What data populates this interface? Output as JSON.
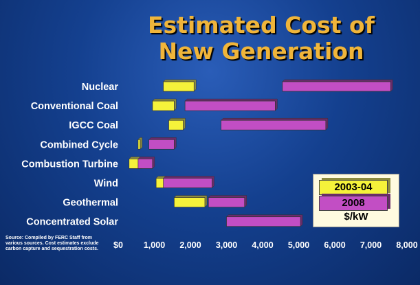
{
  "title": {
    "line1": "Estimated Cost of",
    "line2": "New Generation"
  },
  "source_note": "Source: Compiled by FERC Staff from various sources. Cost estimates exclude carbon capture and sequestration costs.",
  "legend": {
    "series1": "2003-04",
    "series2": "2008",
    "unit": "$/kW"
  },
  "colors": {
    "series1": "#f5f23a",
    "series2": "#c24ec4",
    "title": "#f0b53a"
  },
  "chart_data": {
    "type": "bar",
    "orientation": "horizontal-range",
    "title": "Estimated Cost of New Generation",
    "xlabel": "",
    "ylabel": "",
    "xlim": [
      0,
      8000
    ],
    "x_ticks": [
      "$0",
      "1,000",
      "2,000",
      "3,000",
      "4,000",
      "5,000",
      "6,000",
      "7,000",
      "8,000"
    ],
    "categories": [
      "Nuclear",
      "Conventional Coal",
      "IGCC Coal",
      "Combined Cycle",
      "Combustion Turbine",
      "Wind",
      "Geothermal",
      "Concentrated Solar"
    ],
    "series": [
      {
        "name": "2003-04",
        "ranges": [
          [
            1250,
            2100
          ],
          [
            950,
            1550
          ],
          [
            1400,
            1800
          ],
          [
            550,
            600
          ],
          [
            300,
            650
          ],
          [
            1050,
            1300
          ],
          [
            1550,
            2400
          ],
          null
        ]
      },
      {
        "name": "2008",
        "ranges": [
          [
            4550,
            7550
          ],
          [
            1850,
            4350
          ],
          [
            2850,
            5750
          ],
          [
            850,
            1550
          ],
          [
            550,
            950
          ],
          [
            1250,
            2600
          ],
          [
            2500,
            3500
          ],
          [
            3000,
            5050
          ]
        ]
      }
    ],
    "grid": false,
    "legend_position": "bottom-right"
  }
}
